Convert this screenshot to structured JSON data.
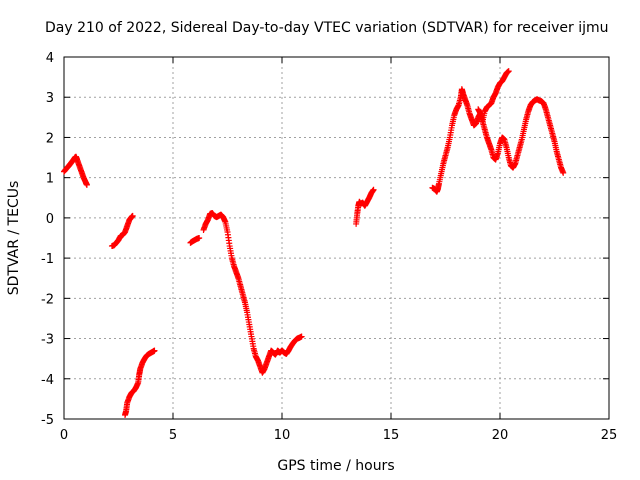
{
  "chart_data": {
    "type": "scatter",
    "title": "Day 210 of 2022, Sidereal Day-to-day VTEC variation (SDTVAR) for receiver ijmu",
    "xlabel": "GPS time / hours",
    "ylabel": "SDTVAR / TECUs",
    "xlim": [
      0,
      25
    ],
    "ylim": [
      -5,
      4
    ],
    "xticks": [
      0,
      5,
      10,
      15,
      20,
      25
    ],
    "yticks": [
      -5,
      -4,
      -3,
      -2,
      -1,
      0,
      1,
      2,
      3,
      4
    ],
    "grid": true,
    "marker": "+",
    "color": "#ff0000",
    "series": [
      {
        "name": "SDTVAR",
        "segments": [
          [
            [
              0.0,
              1.15
            ],
            [
              0.1,
              1.22
            ],
            [
              0.2,
              1.28
            ],
            [
              0.3,
              1.35
            ],
            [
              0.4,
              1.42
            ],
            [
              0.5,
              1.5
            ],
            [
              0.55,
              1.52
            ],
            [
              0.6,
              1.45
            ],
            [
              0.7,
              1.3
            ],
            [
              0.8,
              1.15
            ],
            [
              0.9,
              1.0
            ],
            [
              1.0,
              0.88
            ],
            [
              1.05,
              0.82
            ]
          ],
          [
            [
              2.2,
              -0.7
            ],
            [
              2.3,
              -0.68
            ],
            [
              2.4,
              -0.62
            ],
            [
              2.5,
              -0.55
            ],
            [
              2.6,
              -0.45
            ],
            [
              2.7,
              -0.42
            ],
            [
              2.8,
              -0.35
            ],
            [
              2.9,
              -0.2
            ],
            [
              3.0,
              -0.05
            ],
            [
              3.1,
              0.02
            ],
            [
              3.15,
              0.05
            ]
          ],
          [
            [
              2.8,
              -4.9
            ],
            [
              2.85,
              -4.8
            ],
            [
              2.9,
              -4.6
            ],
            [
              3.0,
              -4.45
            ],
            [
              3.1,
              -4.35
            ],
            [
              3.2,
              -4.3
            ],
            [
              3.3,
              -4.22
            ],
            [
              3.4,
              -4.1
            ],
            [
              3.45,
              -3.9
            ],
            [
              3.5,
              -3.75
            ],
            [
              3.6,
              -3.6
            ],
            [
              3.7,
              -3.5
            ],
            [
              3.8,
              -3.42
            ],
            [
              3.9,
              -3.38
            ],
            [
              4.0,
              -3.35
            ],
            [
              4.1,
              -3.32
            ],
            [
              4.15,
              -3.3
            ]
          ],
          [
            [
              5.8,
              -0.62
            ],
            [
              5.9,
              -0.58
            ],
            [
              6.0,
              -0.55
            ],
            [
              6.1,
              -0.52
            ],
            [
              6.2,
              -0.5
            ]
          ],
          [
            [
              6.4,
              -0.3
            ],
            [
              6.5,
              -0.15
            ],
            [
              6.6,
              -0.05
            ],
            [
              6.7,
              0.1
            ],
            [
              6.8,
              0.12
            ],
            [
              6.9,
              0.05
            ],
            [
              7.0,
              0.02
            ],
            [
              7.1,
              0.05
            ],
            [
              7.2,
              0.08
            ],
            [
              7.3,
              0.02
            ],
            [
              7.4,
              -0.1
            ],
            [
              7.5,
              -0.35
            ],
            [
              7.6,
              -0.7
            ],
            [
              7.7,
              -1.0
            ],
            [
              7.8,
              -1.2
            ],
            [
              7.9,
              -1.35
            ],
            [
              8.0,
              -1.5
            ],
            [
              8.1,
              -1.7
            ],
            [
              8.2,
              -1.9
            ],
            [
              8.3,
              -2.1
            ],
            [
              8.4,
              -2.35
            ],
            [
              8.5,
              -2.65
            ],
            [
              8.6,
              -2.95
            ],
            [
              8.7,
              -3.25
            ],
            [
              8.8,
              -3.45
            ],
            [
              8.9,
              -3.55
            ],
            [
              9.0,
              -3.7
            ],
            [
              9.1,
              -3.85
            ],
            [
              9.2,
              -3.75
            ],
            [
              9.3,
              -3.6
            ],
            [
              9.4,
              -3.45
            ],
            [
              9.5,
              -3.3
            ],
            [
              9.6,
              -3.35
            ],
            [
              9.7,
              -3.4
            ],
            [
              9.8,
              -3.3
            ],
            [
              9.9,
              -3.35
            ],
            [
              10.0,
              -3.3
            ],
            [
              10.1,
              -3.35
            ],
            [
              10.2,
              -3.38
            ],
            [
              10.3,
              -3.3
            ],
            [
              10.4,
              -3.2
            ],
            [
              10.5,
              -3.12
            ],
            [
              10.6,
              -3.05
            ],
            [
              10.7,
              -3.0
            ],
            [
              10.8,
              -2.98
            ],
            [
              10.9,
              -2.95
            ]
          ],
          [
            [
              13.4,
              -0.15
            ],
            [
              13.45,
              0.1
            ],
            [
              13.5,
              0.3
            ],
            [
              13.55,
              0.4
            ],
            [
              13.6,
              0.35
            ],
            [
              13.7,
              0.38
            ],
            [
              13.8,
              0.3
            ],
            [
              13.9,
              0.4
            ],
            [
              14.0,
              0.5
            ],
            [
              14.1,
              0.62
            ],
            [
              14.2,
              0.7
            ]
          ],
          [
            [
              16.9,
              0.75
            ],
            [
              17.0,
              0.72
            ],
            [
              17.1,
              0.65
            ],
            [
              17.15,
              0.72
            ],
            [
              17.2,
              0.85
            ],
            [
              17.3,
              1.1
            ],
            [
              17.4,
              1.35
            ],
            [
              17.5,
              1.55
            ],
            [
              17.6,
              1.75
            ],
            [
              17.7,
              2.0
            ],
            [
              17.8,
              2.3
            ],
            [
              17.9,
              2.55
            ],
            [
              18.0,
              2.7
            ],
            [
              18.1,
              2.8
            ],
            [
              18.2,
              3.0
            ],
            [
              18.25,
              3.2
            ],
            [
              18.3,
              3.1
            ],
            [
              18.4,
              2.95
            ],
            [
              18.5,
              2.8
            ],
            [
              18.6,
              2.6
            ],
            [
              18.7,
              2.45
            ],
            [
              18.8,
              2.3
            ],
            [
              18.9,
              2.35
            ],
            [
              19.0,
              2.5
            ],
            [
              19.1,
              2.6
            ],
            [
              19.2,
              2.4
            ],
            [
              19.3,
              2.65
            ],
            [
              19.4,
              2.75
            ],
            [
              19.5,
              2.8
            ],
            [
              19.6,
              2.85
            ],
            [
              19.7,
              3.0
            ],
            [
              19.8,
              3.1
            ],
            [
              19.9,
              3.25
            ],
            [
              20.0,
              3.35
            ],
            [
              20.1,
              3.4
            ],
            [
              20.2,
              3.5
            ],
            [
              20.3,
              3.6
            ],
            [
              20.4,
              3.65
            ]
          ],
          [
            [
              19.0,
              2.7
            ],
            [
              19.1,
              2.6
            ],
            [
              19.2,
              2.4
            ],
            [
              19.3,
              2.2
            ],
            [
              19.4,
              2.0
            ],
            [
              19.5,
              1.85
            ],
            [
              19.6,
              1.7
            ],
            [
              19.7,
              1.5
            ],
            [
              19.8,
              1.45
            ],
            [
              19.9,
              1.6
            ],
            [
              20.0,
              1.85
            ],
            [
              20.1,
              2.0
            ],
            [
              20.2,
              1.95
            ],
            [
              20.3,
              1.75
            ],
            [
              20.4,
              1.5
            ],
            [
              20.5,
              1.3
            ],
            [
              20.6,
              1.25
            ],
            [
              20.7,
              1.35
            ],
            [
              20.8,
              1.55
            ],
            [
              20.9,
              1.75
            ],
            [
              21.0,
              1.95
            ],
            [
              21.1,
              2.2
            ],
            [
              21.2,
              2.45
            ],
            [
              21.3,
              2.65
            ],
            [
              21.4,
              2.8
            ],
            [
              21.5,
              2.88
            ],
            [
              21.6,
              2.92
            ],
            [
              21.7,
              2.95
            ],
            [
              21.8,
              2.92
            ],
            [
              21.9,
              2.9
            ],
            [
              22.0,
              2.85
            ],
            [
              22.1,
              2.7
            ],
            [
              22.2,
              2.5
            ],
            [
              22.3,
              2.3
            ],
            [
              22.4,
              2.1
            ],
            [
              22.5,
              1.9
            ],
            [
              22.6,
              1.65
            ],
            [
              22.7,
              1.45
            ],
            [
              22.8,
              1.25
            ],
            [
              22.9,
              1.12
            ]
          ]
        ]
      }
    ]
  }
}
